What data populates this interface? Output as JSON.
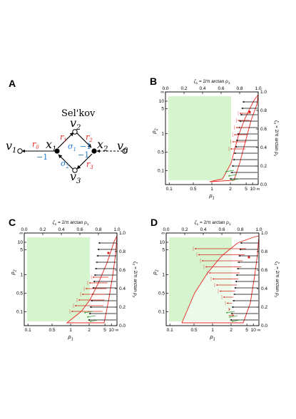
{
  "panel_labels": [
    "A",
    "B",
    "C",
    "D"
  ],
  "network": {
    "title": "Sel'kov",
    "nodes": {
      "v1": "v",
      "v1_sub": "1",
      "v0": "v",
      "v0_sub": "0",
      "v2": "v",
      "v2_sub": "2",
      "v3": "v",
      "v3_sub": "3",
      "x1": "x",
      "x1_sub": "1",
      "x2": "x",
      "x2_sub": "2"
    },
    "rates": {
      "r0": "r",
      "r0_sub": "0",
      "r1": "r",
      "r1_sub": "1",
      "r2": "r",
      "r2_sub": "2",
      "r3": "r",
      "r3_sub": "3"
    },
    "sigmas": {
      "s1": "σ",
      "s1_sub": "1",
      "s2": "σ",
      "s2_sub": "2"
    },
    "stoich": [
      "−1",
      "−1",
      "−1"
    ],
    "colors": {
      "red": "#e8261f",
      "blue": "#1f7fd6",
      "black": "#000000"
    }
  },
  "axes": {
    "x_top_prefix": "ζ",
    "x_top_sub": "1",
    "x_top_eq": " = ",
    "x_top_frac_num": "2",
    "x_top_frac_den": "π",
    "x_top_suffix": "arctan ρ",
    "x_top_suffix_sub": "1",
    "x_bottom": "ρ",
    "x_bottom_sub": "1",
    "y_left": "ρ",
    "y_left_sub": "2",
    "y_right_prefix": "ζ",
    "y_right_sub": "2",
    "y_right_eq": " = ",
    "y_right_frac_num": "2",
    "y_right_frac_den": "π",
    "y_right_suffix": "arctan ρ",
    "y_right_suffix_sub": "2",
    "top_ticks": [
      "0.0",
      "0.2",
      "0.4",
      "0.6",
      "0.8",
      "1.0"
    ],
    "right_ticks": [
      "0.0",
      "0.2",
      "0.4",
      "0.6",
      "0.8",
      "1.0"
    ],
    "bottom_ticks": [
      "0.1",
      "0.5",
      "1",
      "2",
      "5",
      "10",
      "∞"
    ],
    "left_ticks": [
      "0.1",
      "0.5",
      "1",
      "5",
      "10",
      "∞"
    ]
  },
  "colors": {
    "region_fill": "#d6f5cf",
    "region_edge": "#e8261f",
    "flow_black": "#000000",
    "flow_red": "#d8241c",
    "flow_green": "#2a9a2a"
  }
}
